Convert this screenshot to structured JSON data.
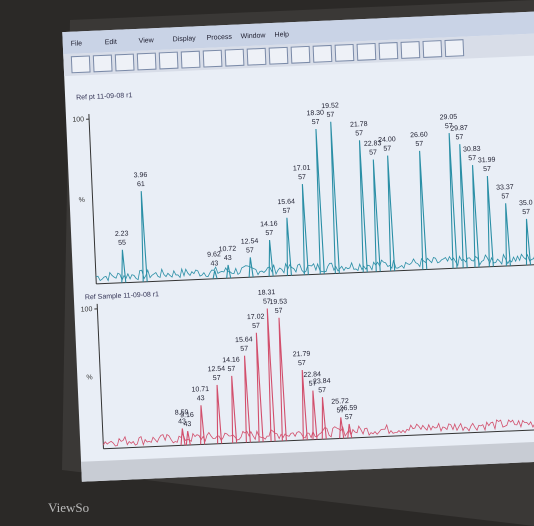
{
  "menu": [
    "File",
    "Edit",
    "View",
    "Display",
    "Process",
    "Window",
    "Help"
  ],
  "brand": "ViewSo",
  "chart_data": [
    {
      "type": "line",
      "title": "Ref pt 11-09-08 r1",
      "color": "#2b8fa6",
      "xlim": [
        0,
        36
      ],
      "ylim": [
        0,
        100
      ],
      "yticks": [
        100
      ],
      "ylabel": "%",
      "x": [
        2.23,
        3.96,
        9.62,
        10.72,
        12.54,
        14.16,
        15.64,
        17.01,
        18.3,
        19.52,
        21.78,
        22.83,
        24,
        26.6,
        29.05,
        29.87,
        30.83,
        31.99,
        33.37,
        35
      ],
      "x_labels": [
        "2.23",
        "3.96",
        "9.62",
        "10.72",
        "12.54",
        "14.16",
        "15.64",
        "17.01",
        "18.30",
        "19.52",
        "21.78",
        "22.83",
        "24.00",
        "26.60",
        "29.05",
        "29.87",
        "30.83",
        "31.99",
        "33.37",
        "35.0"
      ],
      "values": [
        20,
        55,
        5,
        8,
        12,
        22,
        35,
        55,
        88,
        92,
        80,
        68,
        70,
        72,
        82,
        75,
        62,
        55,
        38,
        28
      ],
      "ion_labels": [
        "55",
        "61",
        "43",
        "43",
        "57",
        "57",
        "57",
        "57",
        "57",
        "57",
        "57",
        "57",
        "57",
        "57",
        "57",
        "57",
        "57",
        "57",
        "57",
        "57"
      ]
    },
    {
      "type": "line",
      "title": "Ref Sample 11-09-08 r1",
      "color": "#d24f6c",
      "xlim": [
        0,
        48
      ],
      "ylim": [
        0,
        100
      ],
      "yticks": [
        100
      ],
      "ylabel": "%",
      "x": [
        8.59,
        9.16,
        10.71,
        12.54,
        14.16,
        15.64,
        17.02,
        18.31,
        19.53,
        21.79,
        22.84,
        23.84,
        25.72,
        26.59
      ],
      "x_labels": [
        "8.59",
        "9.16",
        "10.71",
        "12.54",
        "14.16",
        "15.64",
        "17.02",
        "18.31",
        "19.53",
        "21.79",
        "22.84",
        "23.84",
        "25.72",
        "26.59"
      ],
      "values": [
        12,
        10,
        28,
        42,
        48,
        62,
        78,
        95,
        88,
        50,
        35,
        30,
        15,
        10
      ],
      "ion_labels": [
        "43",
        "43",
        "43",
        "57",
        "57",
        "57",
        "57",
        "57",
        "57",
        "57",
        "57",
        "57",
        "57",
        "57"
      ]
    }
  ]
}
